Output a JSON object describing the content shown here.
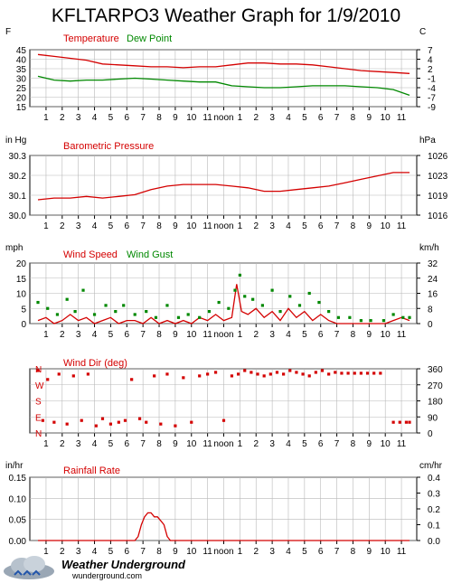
{
  "title": "KFLTARPO3 Weather Graph for 1/9/2010",
  "colors": {
    "red": "#d40000",
    "green": "#008800",
    "grid": "#b8b8b8"
  },
  "hour_labels": [
    "1",
    "2",
    "3",
    "4",
    "5",
    "6",
    "7",
    "8",
    "9",
    "10",
    "11",
    "noon",
    "1",
    "2",
    "3",
    "4",
    "5",
    "6",
    "7",
    "8",
    "9",
    "10",
    "11"
  ],
  "logo": {
    "name": "Weather Underground",
    "url": "wunderground.com",
    "icon": "cloud-logo-icon"
  },
  "chart_data": [
    {
      "type": "line",
      "series_labels": [
        "Temperature",
        "Dew Point"
      ],
      "left_unit": "F",
      "right_unit": "C",
      "left_ticks": [
        "45",
        "40",
        "35",
        "30",
        "25",
        "20",
        "15"
      ],
      "right_ticks": [
        "7",
        "4",
        "2",
        "-1",
        "-4",
        "-7",
        "-9"
      ],
      "ylim": [
        15,
        45
      ],
      "x_hours": [
        0,
        1,
        2,
        3,
        4,
        5,
        6,
        7,
        8,
        9,
        10,
        11,
        12,
        13,
        14,
        15,
        16,
        17,
        18,
        19,
        20,
        21,
        22,
        23
      ],
      "series": [
        {
          "color": "red",
          "values": [
            42.5,
            41.5,
            40.5,
            39.5,
            37.5,
            37,
            36.5,
            36,
            36,
            35.5,
            36,
            36,
            37,
            38,
            38,
            37.5,
            37.5,
            37,
            36,
            35,
            34,
            33.5,
            33,
            32.5
          ]
        },
        {
          "color": "green",
          "values": [
            31,
            29,
            28.5,
            29,
            29,
            29.5,
            30,
            29.5,
            29,
            28.5,
            28,
            28,
            26,
            25.5,
            25,
            25,
            25.5,
            26,
            26,
            26,
            25.5,
            25,
            24,
            21
          ]
        }
      ]
    },
    {
      "type": "line",
      "series_labels": [
        "Barometric Pressure"
      ],
      "left_unit": "in Hg",
      "right_unit": "hPa",
      "left_ticks": [
        "30.3",
        "30.2",
        "30.1",
        "30.0"
      ],
      "right_ticks": [
        "1026",
        "1023",
        "1019",
        "1016"
      ],
      "ylim": [
        30.0,
        30.35
      ],
      "x_hours": [
        0,
        1,
        2,
        3,
        4,
        5,
        6,
        7,
        8,
        9,
        10,
        11,
        12,
        13,
        14,
        15,
        16,
        17,
        18,
        19,
        20,
        21,
        22,
        23
      ],
      "series": [
        {
          "color": "red",
          "values": [
            30.09,
            30.1,
            30.1,
            30.11,
            30.1,
            30.11,
            30.12,
            30.15,
            30.17,
            30.18,
            30.18,
            30.18,
            30.17,
            30.16,
            30.14,
            30.14,
            30.15,
            30.16,
            30.17,
            30.19,
            30.21,
            30.23,
            30.25,
            30.25
          ]
        }
      ]
    },
    {
      "type": "line",
      "series_labels": [
        "Wind Speed",
        "Wind Gust"
      ],
      "left_unit": "mph",
      "right_unit": "km/h",
      "left_ticks": [
        "20",
        "15",
        "10",
        "5",
        "0"
      ],
      "right_ticks": [
        "32",
        "24",
        "16",
        "8",
        "0"
      ],
      "ylim": [
        0,
        20
      ],
      "series": [
        {
          "color": "red",
          "style": "line",
          "x": [
            0,
            0.5,
            1,
            1.5,
            2,
            2.5,
            3,
            3.5,
            4,
            4.5,
            5,
            5.5,
            6,
            6.5,
            7,
            7.5,
            8,
            8.5,
            9,
            9.5,
            10,
            10.5,
            11,
            11.5,
            12,
            12.3,
            12.6,
            13,
            13.5,
            14,
            14.5,
            15,
            15.5,
            16,
            16.5,
            17,
            17.5,
            18,
            18.5,
            19,
            19.5,
            20,
            20.5,
            21,
            21.5,
            22,
            22.5,
            23
          ],
          "values": [
            1,
            2,
            0,
            1,
            3,
            1,
            2,
            0,
            1,
            2,
            0,
            1,
            1,
            0,
            2,
            0,
            1,
            0,
            1,
            0,
            2,
            1,
            3,
            1,
            2,
            13,
            4,
            3,
            5,
            2,
            4,
            1,
            5,
            2,
            4,
            1,
            3,
            1,
            0,
            0,
            0,
            0,
            0,
            0,
            0,
            1,
            2,
            1
          ]
        },
        {
          "color": "green",
          "style": "points",
          "x": [
            0,
            0.6,
            1.2,
            1.8,
            2.3,
            2.8,
            3.5,
            4.2,
            4.8,
            5.3,
            6,
            6.7,
            7.3,
            8,
            8.7,
            9.3,
            10,
            10.6,
            11.2,
            11.8,
            12.2,
            12.5,
            12.8,
            13.3,
            13.9,
            14.5,
            15,
            15.6,
            16.2,
            16.8,
            17.4,
            18,
            18.6,
            19.3,
            20,
            20.6,
            21.4,
            22,
            22.6,
            23
          ],
          "values": [
            7,
            5,
            3,
            8,
            4,
            11,
            3,
            6,
            4,
            6,
            3,
            4,
            2,
            6,
            2,
            3,
            2,
            4,
            7,
            5,
            11,
            16,
            9,
            8,
            6,
            11,
            4,
            9,
            6,
            10,
            7,
            4,
            2,
            2,
            1,
            1,
            1,
            3,
            2,
            2
          ]
        }
      ]
    },
    {
      "type": "scatter",
      "series_labels": [
        "Wind Dir (deg)"
      ],
      "left_unit": "",
      "right_unit": "",
      "compass_labels": [
        "N",
        "W",
        "S",
        "E",
        "N"
      ],
      "right_ticks": [
        "360",
        "270",
        "180",
        "90",
        "0"
      ],
      "ylim": [
        0,
        360
      ],
      "series": [
        {
          "color": "red",
          "x": [
            0,
            0.3,
            0.6,
            1,
            1.3,
            1.8,
            2.2,
            2.7,
            3.1,
            3.6,
            4,
            4.5,
            5,
            5.4,
            5.8,
            6.3,
            6.7,
            7.2,
            7.6,
            8,
            8.5,
            9,
            9.5,
            10,
            10.5,
            11,
            11.5,
            12,
            12.4,
            12.8,
            13.2,
            13.6,
            14,
            14.4,
            14.8,
            15.2,
            15.6,
            16,
            16.4,
            16.8,
            17.2,
            17.6,
            18,
            18.4,
            18.8,
            19.2,
            19.6,
            20,
            20.4,
            20.8,
            21.2,
            22,
            22.4,
            22.8,
            23
          ],
          "values": [
            350,
            70,
            300,
            60,
            330,
            50,
            320,
            70,
            330,
            40,
            80,
            50,
            60,
            70,
            300,
            80,
            60,
            320,
            50,
            330,
            40,
            310,
            60,
            320,
            330,
            340,
            70,
            320,
            330,
            350,
            340,
            330,
            320,
            330,
            340,
            330,
            350,
            340,
            330,
            320,
            340,
            350,
            330,
            340,
            335,
            335,
            335,
            335,
            335,
            335,
            335,
            60,
            60,
            60,
            60
          ]
        }
      ]
    },
    {
      "type": "line",
      "series_labels": [
        "Rainfall Rate"
      ],
      "left_unit": "in/hr",
      "right_unit": "cm/hr",
      "left_ticks": [
        "0.15",
        "0.10",
        "0.05",
        "0.00"
      ],
      "right_ticks": [
        "0.4",
        "0.3",
        "0.2",
        "0.1",
        "0.0"
      ],
      "ylim": [
        0,
        0.16
      ],
      "series": [
        {
          "color": "red",
          "x": [
            0,
            6,
            6.2,
            6.4,
            6.6,
            6.8,
            7,
            7.2,
            7.4,
            7.6,
            7.8,
            8,
            8.2,
            23
          ],
          "values": [
            0,
            0,
            0.01,
            0.04,
            0.06,
            0.07,
            0.07,
            0.06,
            0.06,
            0.05,
            0.04,
            0.01,
            0,
            0
          ]
        }
      ]
    }
  ]
}
